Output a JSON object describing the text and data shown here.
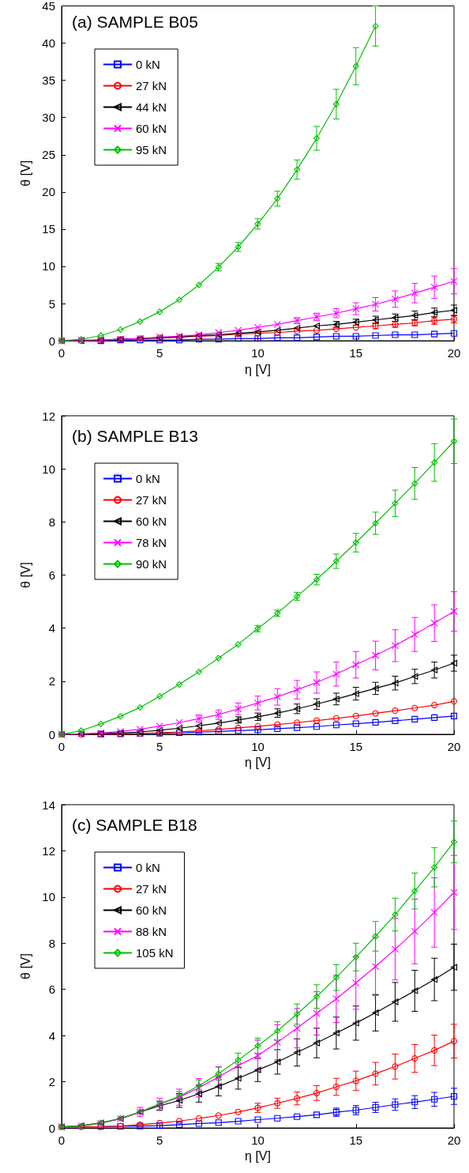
{
  "chart_data": [
    {
      "type": "line",
      "title": "(a) SAMPLE B05",
      "xlabel": "η [V]",
      "ylabel": "θ [V]",
      "legend": "top left",
      "xlim": [
        0,
        20
      ],
      "xticks": [
        0,
        5,
        10,
        15,
        20
      ],
      "ylim": [
        0,
        45
      ],
      "yticks": [
        0,
        5,
        10,
        15,
        20,
        25,
        30,
        35,
        40,
        45
      ],
      "x": [
        0,
        1,
        2,
        3,
        4,
        5,
        6,
        7,
        8,
        9,
        10,
        11,
        12,
        13,
        14,
        15,
        16,
        17,
        18,
        19,
        20
      ],
      "series": [
        {
          "name": "0 kN",
          "color": "#0000ff",
          "marker": "square",
          "values": [
            null,
            null,
            0,
            0.1,
            0.1,
            0.1,
            0.1,
            0.2,
            0.2,
            0.3,
            0.3,
            0.4,
            0.4,
            0.5,
            0.6,
            0.6,
            0.7,
            0.8,
            0.8,
            0.9,
            1.0
          ]
        },
        {
          "name": "27 kN",
          "color": "#ff0000",
          "marker": "circle",
          "values": [
            0,
            0,
            0.1,
            0.2,
            0.3,
            0.4,
            0.5,
            0.6,
            0.7,
            0.9,
            1.0,
            1.1,
            1.3,
            1.4,
            1.6,
            1.8,
            2.0,
            2.2,
            2.4,
            2.7,
            2.9
          ],
          "errors": [
            null,
            null,
            null,
            null,
            null,
            null,
            null,
            null,
            null,
            null,
            null,
            null,
            null,
            null,
            null,
            null,
            0.4,
            0.4,
            0.4,
            0.5,
            0.5
          ]
        },
        {
          "name": "44 kN",
          "color": "#000000",
          "marker": "triangle",
          "values": [
            0,
            0,
            0.1,
            0.2,
            0.3,
            0.4,
            0.5,
            0.7,
            0.8,
            1.0,
            1.2,
            1.4,
            1.7,
            2.0,
            2.2,
            2.5,
            2.8,
            3.1,
            3.4,
            3.8,
            4.1
          ],
          "errors": [
            null,
            null,
            null,
            null,
            null,
            null,
            null,
            null,
            null,
            null,
            null,
            null,
            null,
            null,
            0.4,
            0.4,
            0.5,
            0.5,
            0.6,
            0.6,
            0.7
          ]
        },
        {
          "name": "60 kN",
          "color": "#ff00ff",
          "marker": "cross",
          "values": [
            0,
            0.1,
            0.1,
            0.2,
            0.3,
            0.5,
            0.6,
            0.8,
            1.1,
            1.4,
            1.8,
            2.2,
            2.7,
            3.2,
            3.7,
            4.3,
            4.9,
            5.6,
            6.4,
            7.2,
            8.0
          ],
          "errors": [
            null,
            null,
            null,
            null,
            null,
            null,
            null,
            null,
            null,
            null,
            null,
            null,
            0.4,
            0.5,
            0.6,
            0.8,
            0.9,
            1.1,
            1.3,
            1.5,
            1.7
          ]
        },
        {
          "name": "95 kN",
          "color": "#00c000",
          "marker": "diamond",
          "values": [
            0,
            0.2,
            0.7,
            1.5,
            2.6,
            3.9,
            5.5,
            7.5,
            9.9,
            12.6,
            15.7,
            19.1,
            23.0,
            27.2,
            31.8,
            36.9,
            42.3,
            null,
            null,
            null,
            null
          ],
          "errors": [
            null,
            null,
            null,
            null,
            null,
            null,
            null,
            null,
            0.5,
            0.6,
            0.7,
            1.0,
            1.3,
            1.6,
            2.0,
            2.5,
            2.7,
            null,
            null,
            null,
            null
          ]
        }
      ]
    },
    {
      "type": "line",
      "title": "(b) SAMPLE B13",
      "xlabel": "η [V]",
      "ylabel": "θ [V]",
      "legend": "top left",
      "xlim": [
        0,
        20
      ],
      "xticks": [
        0,
        5,
        10,
        15,
        20
      ],
      "ylim": [
        0,
        12
      ],
      "yticks": [
        0,
        2,
        4,
        6,
        8,
        10,
        12
      ],
      "x": [
        0,
        1,
        2,
        3,
        4,
        5,
        6,
        7,
        8,
        9,
        10,
        11,
        12,
        13,
        14,
        15,
        16,
        17,
        18,
        19,
        20
      ],
      "series": [
        {
          "name": "0 kN",
          "color": "#0000ff",
          "marker": "square",
          "values": [
            null,
            null,
            0.01,
            0.02,
            0.03,
            0.04,
            0.06,
            0.08,
            0.11,
            0.14,
            0.17,
            0.21,
            0.25,
            0.29,
            0.35,
            0.4,
            0.45,
            0.51,
            0.57,
            0.63,
            0.69
          ]
        },
        {
          "name": "27 kN",
          "color": "#ff0000",
          "marker": "circle",
          "values": [
            0,
            0,
            0.01,
            0.02,
            0.03,
            0.06,
            0.09,
            0.13,
            0.18,
            0.24,
            0.3,
            0.37,
            0.44,
            0.52,
            0.6,
            0.69,
            0.79,
            0.89,
            0.99,
            1.1,
            1.24
          ]
        },
        {
          "name": "60 kN",
          "color": "#000000",
          "marker": "triangle",
          "values": [
            0,
            0.01,
            0.03,
            0.05,
            0.09,
            0.15,
            0.23,
            0.32,
            0.42,
            0.54,
            0.66,
            0.8,
            0.96,
            1.14,
            1.33,
            1.53,
            1.73,
            1.93,
            2.18,
            2.42,
            2.68
          ],
          "errors": [
            null,
            null,
            null,
            null,
            null,
            null,
            null,
            null,
            null,
            0.12,
            0.14,
            0.16,
            0.18,
            0.2,
            0.22,
            0.24,
            0.23,
            0.26,
            0.27,
            0.3,
            0.3
          ]
        },
        {
          "name": "78 kN",
          "color": "#ff00ff",
          "marker": "cross",
          "values": [
            0,
            0.02,
            0.05,
            0.11,
            0.19,
            0.31,
            0.44,
            0.59,
            0.74,
            0.96,
            1.18,
            1.41,
            1.68,
            1.95,
            2.27,
            2.62,
            2.97,
            3.34,
            3.76,
            4.19,
            4.63
          ],
          "errors": [
            null,
            null,
            null,
            null,
            null,
            null,
            null,
            0.14,
            0.18,
            0.22,
            0.26,
            0.31,
            0.35,
            0.4,
            0.45,
            0.5,
            0.54,
            0.6,
            0.64,
            0.69,
            0.74
          ]
        },
        {
          "name": "90 kN",
          "color": "#00c000",
          "marker": "diamond",
          "values": [
            0,
            0.14,
            0.39,
            0.68,
            1.01,
            1.43,
            1.88,
            2.35,
            2.87,
            3.39,
            3.98,
            4.56,
            5.2,
            5.83,
            6.52,
            7.22,
            7.95,
            8.7,
            9.45,
            10.24,
            11.04
          ],
          "errors": [
            null,
            null,
            null,
            null,
            null,
            null,
            null,
            null,
            null,
            null,
            0.12,
            0.12,
            0.15,
            0.2,
            0.27,
            0.35,
            0.42,
            0.5,
            0.6,
            0.71,
            0.84
          ]
        }
      ]
    },
    {
      "type": "line",
      "title": "(c) SAMPLE B18",
      "xlabel": "η [V]",
      "ylabel": "θ [V]",
      "legend": "top left",
      "xlim": [
        0,
        20
      ],
      "xticks": [
        0,
        5,
        10,
        15,
        20
      ],
      "ylim": [
        0,
        14
      ],
      "yticks": [
        0,
        2,
        4,
        6,
        8,
        10,
        12,
        14
      ],
      "x": [
        0,
        1,
        2,
        3,
        4,
        5,
        6,
        7,
        8,
        9,
        10,
        11,
        12,
        13,
        14,
        15,
        16,
        17,
        18,
        19,
        20
      ],
      "series": [
        {
          "name": "0 kN",
          "color": "#0000ff",
          "marker": "square",
          "values": [
            null,
            null,
            0.06,
            0.07,
            0.08,
            0.1,
            0.14,
            0.19,
            0.23,
            0.29,
            0.36,
            0.42,
            0.49,
            0.57,
            0.68,
            0.77,
            0.89,
            1.01,
            1.12,
            1.24,
            1.37
          ],
          "errors": [
            null,
            null,
            null,
            null,
            null,
            null,
            null,
            null,
            null,
            null,
            null,
            null,
            null,
            null,
            0.18,
            0.2,
            0.22,
            0.25,
            0.28,
            0.3,
            0.35
          ]
        },
        {
          "name": "27 kN",
          "color": "#ff0000",
          "marker": "circle",
          "values": [
            0.05,
            0.05,
            0.06,
            0.08,
            0.14,
            0.21,
            0.3,
            0.41,
            0.54,
            0.69,
            0.87,
            1.07,
            1.28,
            1.51,
            1.78,
            2.04,
            2.35,
            2.66,
            3.01,
            3.36,
            3.76
          ],
          "errors": [
            null,
            null,
            null,
            null,
            null,
            null,
            null,
            null,
            null,
            null,
            0.2,
            0.22,
            0.28,
            0.32,
            0.37,
            0.42,
            0.49,
            0.54,
            0.6,
            0.66,
            0.73
          ]
        },
        {
          "name": "60 kN",
          "color": "#000000",
          "marker": "triangle",
          "values": [
            0.05,
            0.1,
            0.22,
            0.4,
            0.69,
            0.96,
            1.19,
            1.48,
            1.8,
            2.15,
            2.51,
            2.86,
            3.27,
            3.68,
            4.11,
            4.54,
            4.99,
            5.46,
            5.94,
            6.43,
            6.96
          ],
          "errors": [
            null,
            null,
            null,
            null,
            null,
            0.2,
            0.3,
            0.36,
            0.41,
            0.47,
            0.5,
            0.53,
            0.59,
            0.64,
            0.69,
            0.74,
            0.79,
            0.84,
            0.89,
            0.92,
            1.0
          ]
        },
        {
          "name": "88 kN",
          "color": "#ff00ff",
          "marker": "cross",
          "values": [
            0.05,
            0.08,
            0.2,
            0.4,
            0.69,
            1.04,
            1.33,
            1.74,
            2.21,
            2.7,
            3.13,
            3.71,
            4.32,
            4.96,
            5.59,
            6.28,
            6.99,
            7.74,
            8.51,
            9.33,
            10.2
          ],
          "errors": [
            null,
            null,
            null,
            null,
            0.2,
            0.25,
            0.35,
            0.4,
            0.45,
            null,
            0.67,
            0.76,
            0.85,
            0.94,
            1.02,
            1.14,
            1.26,
            1.33,
            1.4,
            1.5,
            1.6
          ]
        },
        {
          "name": "105 kN",
          "color": "#00c000",
          "marker": "diamond",
          "values": [
            0.05,
            0.08,
            0.22,
            0.42,
            0.69,
            1.04,
            1.37,
            1.83,
            2.35,
            2.94,
            3.56,
            4.2,
            4.93,
            5.69,
            6.51,
            7.4,
            8.3,
            9.24,
            10.26,
            11.29,
            12.39
          ],
          "errors": [
            null,
            null,
            null,
            null,
            null,
            null,
            0.2,
            0.25,
            0.28,
            0.3,
            0.33,
            0.4,
            0.44,
            0.51,
            0.56,
            0.6,
            0.64,
            0.71,
            0.78,
            0.85,
            0.9
          ]
        }
      ]
    }
  ]
}
